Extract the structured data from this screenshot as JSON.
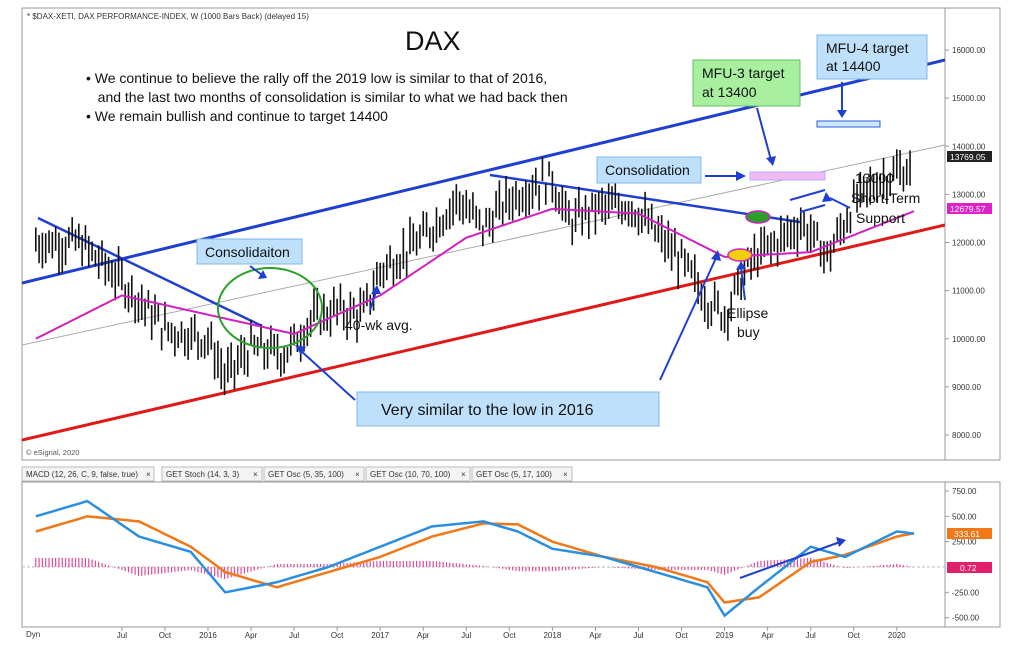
{
  "header": {
    "symbol_line": "* $DAX-XETI, DAX PERFORMANCE-INDEX, W (1000 Bars Back) (delayed 15)",
    "title": "DAX",
    "bullets": [
      "• We continue to believe the rally off the 2019 low is similar to that of 2016,",
      "   and the last two months of consolidation is similar to what we had back then",
      "• We remain bullish and continue to target 14400"
    ],
    "watermark": "© eSignal, 2020"
  },
  "annotations": {
    "mfu4": [
      "MFU-4 target",
      "at 14400"
    ],
    "mfu3": [
      "MFU-3 target",
      "at 13400"
    ],
    "consolidation_right": "Consolidation",
    "consolidation_left": "Consolidaiton",
    "support": [
      "13000",
      "Short-Term",
      "Support"
    ],
    "ellipse_buy": [
      "Ellipse",
      "buy"
    ],
    "ma_label": "40-wk avg.",
    "low_box": "Very similar to the low in 2016"
  },
  "tabs": [
    "MACD (12, 26, C, 9, false, true)",
    "GET Stoch (14, 3, 3)",
    "GET Osc (5, 35, 100)",
    "GET Osc (10, 70, 100)",
    "GET Osc (5, 17, 100)"
  ],
  "tab_close": "×",
  "bottom_left": "Dyn",
  "price_badges": {
    "last": "13769.05",
    "ma": "12679.57"
  },
  "macd_badges": {
    "macd": "333.61",
    "hist": "0.72"
  },
  "colors": {
    "price_badge": "#222222",
    "ma_badge": "#e020c8",
    "macd_badge": "#f07818",
    "hist_badge": "#e0206a",
    "upper_channel": "#1f3fd0",
    "lower_channel": "#e01818",
    "ma_line": "#d020c0",
    "ellipse": "#2aa02a"
  },
  "chart_data": [
    {
      "type": "line",
      "title": "DAX",
      "ylim": [
        8000,
        16500
      ],
      "y_ticks": [
        8000,
        9000,
        10000,
        11000,
        12000,
        13000,
        14000,
        15000,
        16000
      ],
      "y_tick_labels": [
        "8000.00",
        "9000.00",
        "10000.00",
        "11000.00",
        "12000.00",
        "13000.00",
        "14000.00",
        "15000.00",
        "16000.00"
      ],
      "x_labels": [
        "Jul",
        "Oct",
        "2016",
        "Apr",
        "Jul",
        "Oct",
        "2017",
        "Apr",
        "Jul",
        "Oct",
        "2018",
        "Apr",
        "Jul",
        "Oct",
        "2019",
        "Apr",
        "Jul",
        "Oct",
        "2020"
      ],
      "series": [
        {
          "name": "",
          "x": [
            2015.25,
            2015.5,
            2015.75,
            2016.0,
            2016.1,
            2016.25,
            2016.45,
            2016.6,
            2016.75,
            2016.9,
            2017.0,
            2017.25,
            2017.45,
            2017.6,
            2017.75,
            2017.9,
            2018.0,
            2018.1,
            2018.25,
            2018.45,
            2018.6,
            2018.75,
            2018.9,
            2019.0,
            2019.15,
            2019.3,
            2019.45,
            2019.6,
            2019.75,
            2019.9,
            2020.05
          ],
          "values": [
            12000,
            11200,
            10200,
            10000,
            9200,
            9800,
            9700,
            10400,
            10600,
            10500,
            11400,
            12100,
            12900,
            12300,
            12900,
            13200,
            13300,
            12400,
            12700,
            12800,
            12200,
            11600,
            10800,
            10500,
            11600,
            12000,
            12400,
            11700,
            12800,
            13300,
            13500
          ]
        },
        {
          "name": "40-wk avg.",
          "x": [
            2015.0,
            2015.5,
            2016.0,
            2016.5,
            2017.0,
            2017.5,
            2018.0,
            2018.5,
            2019.0,
            2019.5,
            2020.1
          ],
          "values": [
            10000,
            10900,
            10500,
            10100,
            10900,
            12100,
            12700,
            12600,
            11700,
            11800,
            12650
          ]
        }
      ],
      "levels": {
        "mfu3_target": 13400,
        "mfu4_target": 14400,
        "support": 13000
      },
      "last_value": 13769.05,
      "ma_last": 12679.57
    },
    {
      "type": "line",
      "title": "MACD (12, 26, C, 9, false, true)",
      "ylim": [
        -500,
        750
      ],
      "y_ticks": [
        750,
        500,
        250,
        -250,
        -500
      ],
      "y_tick_labels": [
        "750.00",
        "500.00",
        "250.00",
        "-250.00",
        "-500.00"
      ],
      "series": [
        {
          "name": "MACD",
          "x": [
            2015.0,
            2015.3,
            2015.6,
            2015.9,
            2016.1,
            2016.4,
            2016.7,
            2017.0,
            2017.3,
            2017.6,
            2017.8,
            2018.0,
            2018.3,
            2018.6,
            2018.9,
            2019.0,
            2019.2,
            2019.5,
            2019.7,
            2020.0,
            2020.1
          ],
          "values": [
            500,
            650,
            300,
            150,
            -250,
            -150,
            0,
            200,
            400,
            450,
            350,
            180,
            100,
            -50,
            -200,
            -480,
            -200,
            200,
            100,
            350,
            330
          ]
        },
        {
          "name": "Signal",
          "x": [
            2015.0,
            2015.3,
            2015.6,
            2015.9,
            2016.1,
            2016.4,
            2016.7,
            2017.0,
            2017.3,
            2017.6,
            2017.8,
            2018.0,
            2018.3,
            2018.6,
            2018.9,
            2019.0,
            2019.2,
            2019.5,
            2019.7,
            2020.0,
            2020.1
          ],
          "values": [
            350,
            500,
            450,
            200,
            -50,
            -200,
            -50,
            100,
            300,
            430,
            420,
            250,
            100,
            0,
            -150,
            -350,
            -300,
            50,
            120,
            300,
            333.61
          ]
        }
      ],
      "last_value": 333.61,
      "hist_last": 0.72
    }
  ]
}
